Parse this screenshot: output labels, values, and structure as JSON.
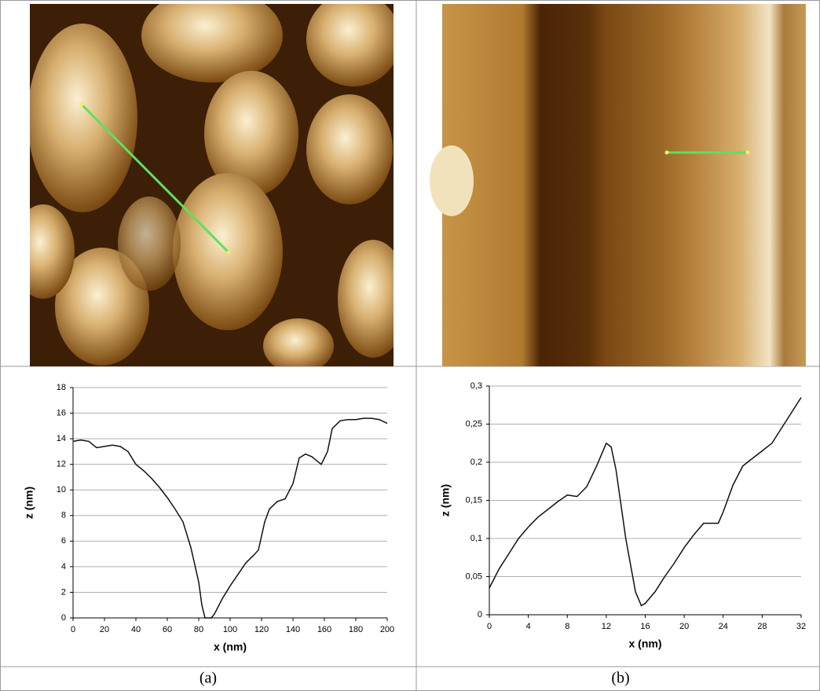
{
  "chart_data": [
    {
      "type": "line",
      "caption": "(a)",
      "x_label": "x (nm)",
      "y_label": "z (nm)",
      "color": "#111111",
      "grid": true,
      "x": [
        0,
        5,
        10,
        15,
        20,
        25,
        30,
        35,
        40,
        45,
        50,
        55,
        60,
        65,
        70,
        75,
        80,
        82,
        84,
        88,
        90,
        95,
        100,
        105,
        110,
        115,
        118,
        122,
        125,
        130,
        135,
        140,
        144,
        148,
        152,
        156,
        158,
        162,
        165,
        170,
        175,
        180,
        185,
        190,
        195,
        200
      ],
      "values": [
        13.8,
        13.9,
        13.8,
        13.3,
        13.4,
        13.5,
        13.4,
        13.0,
        12.0,
        11.5,
        10.9,
        10.2,
        9.4,
        8.5,
        7.5,
        5.5,
        2.8,
        1.0,
        0,
        0,
        0.3,
        1.5,
        2.5,
        3.4,
        4.3,
        4.9,
        5.3,
        7.5,
        8.5,
        9.1,
        9.3,
        10.5,
        12.5,
        12.8,
        12.6,
        12.2,
        12.0,
        13.0,
        14.8,
        15.4,
        15.5,
        15.5,
        15.6,
        15.6,
        15.5,
        15.2
      ],
      "xlim": [
        0,
        200
      ],
      "xticks": [
        0,
        20,
        40,
        60,
        80,
        100,
        120,
        140,
        160,
        180,
        200
      ],
      "ylim": [
        0,
        18
      ],
      "yticks": [
        0,
        2,
        4,
        6,
        8,
        10,
        12,
        14,
        16,
        18
      ]
    },
    {
      "type": "line",
      "caption": "(b)",
      "x_label": "x (nm)",
      "y_label": "z (nm)",
      "color": "#111111",
      "grid": true,
      "x": [
        0,
        1,
        2,
        3,
        4,
        5,
        6,
        7,
        8,
        9,
        10,
        11,
        12,
        12.5,
        13,
        14,
        15,
        15.6,
        16,
        17,
        18,
        19,
        20,
        21,
        22,
        23,
        23.5,
        24,
        25,
        26,
        27,
        28,
        29,
        30,
        31,
        32
      ],
      "values": [
        0.035,
        0.06,
        0.08,
        0.1,
        0.115,
        0.128,
        0.138,
        0.148,
        0.157,
        0.155,
        0.168,
        0.195,
        0.225,
        0.22,
        0.19,
        0.1,
        0.03,
        0.012,
        0.015,
        0.03,
        0.05,
        0.068,
        0.088,
        0.105,
        0.12,
        0.12,
        0.12,
        0.135,
        0.17,
        0.195,
        0.205,
        0.215,
        0.225,
        0.245,
        0.265,
        0.285
      ],
      "xlim": [
        0,
        32
      ],
      "xticks": [
        0,
        4,
        8,
        12,
        16,
        20,
        24,
        28,
        32
      ],
      "ylim": [
        0,
        0.3
      ],
      "yticks": [
        0,
        {
          "value": 0.05,
          "label": "0,05"
        },
        {
          "value": 0.1,
          "label": "0,1"
        },
        {
          "value": 0.15,
          "label": "0,15"
        },
        {
          "value": 0.2,
          "label": "0,2"
        },
        {
          "value": 0.25,
          "label": "0,25"
        },
        {
          "value": 0.3,
          "label": "0,3"
        }
      ]
    }
  ]
}
